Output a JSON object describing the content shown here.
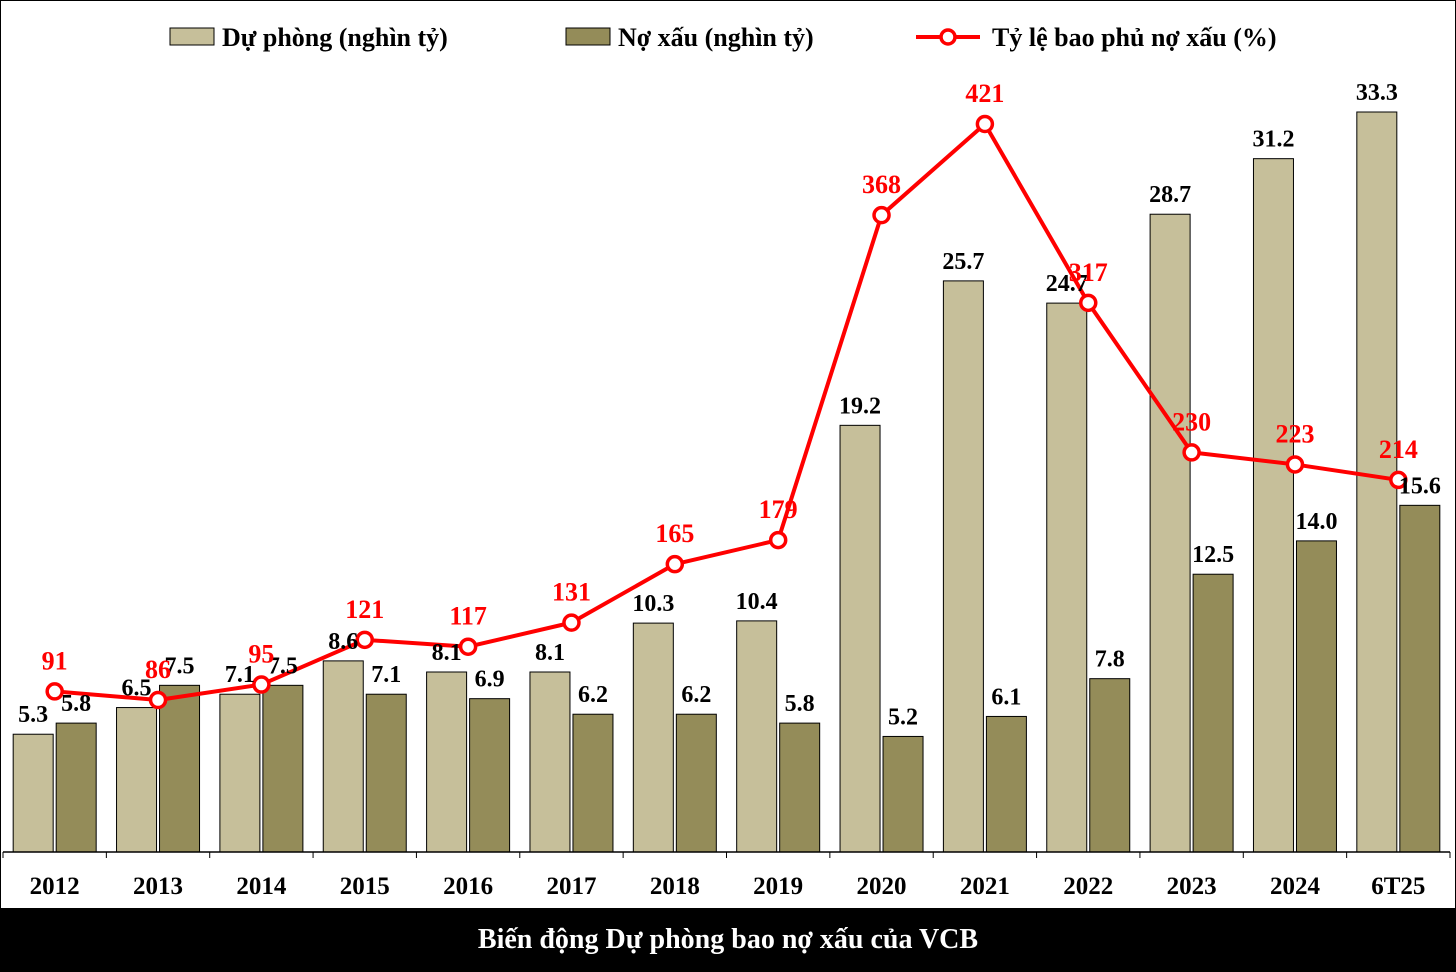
{
  "chart_data": {
    "type": "bar",
    "title": "Biến động Dự phòng bao nợ xấu của VCB",
    "categories": [
      "2012",
      "2013",
      "2014",
      "2015",
      "2016",
      "2017",
      "2018",
      "2019",
      "2020",
      "2021",
      "2022",
      "2023",
      "2024",
      "6T25"
    ],
    "series": [
      {
        "name": "Dự phòng (nghìn tỷ)",
        "kind": "bar",
        "color": "#c6bf9a",
        "values": [
          5.3,
          6.5,
          7.1,
          8.6,
          8.1,
          8.1,
          10.3,
          10.4,
          19.2,
          25.7,
          24.7,
          28.7,
          31.2,
          33.3
        ],
        "labels": [
          "5.3",
          "6.5",
          "7.1",
          "8.6",
          "8.1",
          "8.1",
          "10.3",
          "10.4",
          "19.2",
          "25.7",
          "24.7",
          "28.7",
          "31.2",
          "33.3"
        ]
      },
      {
        "name": "Nợ xấu (nghìn tỷ)",
        "kind": "bar",
        "color": "#948c59",
        "values": [
          5.8,
          7.5,
          7.5,
          7.1,
          6.9,
          6.2,
          6.2,
          5.8,
          5.2,
          6.1,
          7.8,
          12.5,
          14.0,
          15.6
        ],
        "labels": [
          "5.8",
          "7.5",
          "7.5",
          "7.1",
          "6.9",
          "6.2",
          "6.2",
          "5.8",
          "5.2",
          "6.1",
          "7.8",
          "12.5",
          "14.0",
          "15.6"
        ]
      },
      {
        "name": "Tỷ lệ bao phủ nợ xấu (%)",
        "kind": "line",
        "color": "#ff0000",
        "values": [
          91,
          86,
          95,
          121,
          117,
          131,
          165,
          179,
          368,
          421,
          317,
          230,
          223,
          214
        ],
        "labels": [
          "91",
          "86",
          "95",
          "121",
          "117",
          "131",
          "165",
          "179",
          "368",
          "421",
          "317",
          "230",
          "223",
          "214"
        ]
      }
    ],
    "ylim_bars": [
      0,
      35
    ],
    "ylim_line": [
      -20,
      460
    ],
    "legend_position": "top",
    "grid": false,
    "xlabel": "",
    "ylabel": ""
  }
}
